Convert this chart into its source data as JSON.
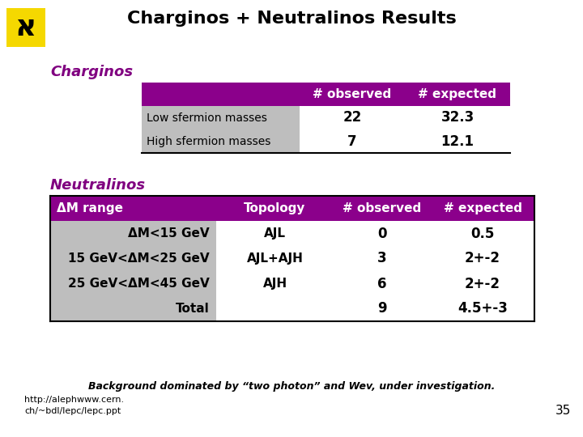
{
  "title": "Charginos + Neutralinos Results",
  "background_color": "#ffffff",
  "charginos_label": "Charginos",
  "neutralinos_label": "Neutralinos",
  "label_color": "#800080",
  "purple_header_color": "#8b008b",
  "gray_cell_color": "#bebebe",
  "white_cell_color": "#ffffff",
  "charginos_header": [
    "# observed",
    "# expected"
  ],
  "charginos_rows": [
    [
      "Low sfermion masses",
      "22",
      "32.3"
    ],
    [
      "High sfermion masses",
      "7",
      "12.1"
    ]
  ],
  "neutralinos_header": [
    "ΔM range",
    "Topology",
    "# observed",
    "# expected"
  ],
  "neutralinos_rows": [
    [
      "ΔM<15 GeV",
      "AJL",
      "0",
      "0.5"
    ],
    [
      "15 GeV<ΔM<25 GeV",
      "AJL+AJH",
      "3",
      "2+-2"
    ],
    [
      "25 GeV<ΔM<45 GeV",
      "AJH",
      "6",
      "2+-2"
    ],
    [
      "Total",
      "",
      "9",
      "4.5+-3"
    ]
  ],
  "footer_bold": "Background dominated by “two photon” and Wev, under investigation.",
  "footer_url": "http://alephwww.cern.",
  "footer_path": "ch/~bdl/lepc/lepc.ppt",
  "page_number": "35"
}
